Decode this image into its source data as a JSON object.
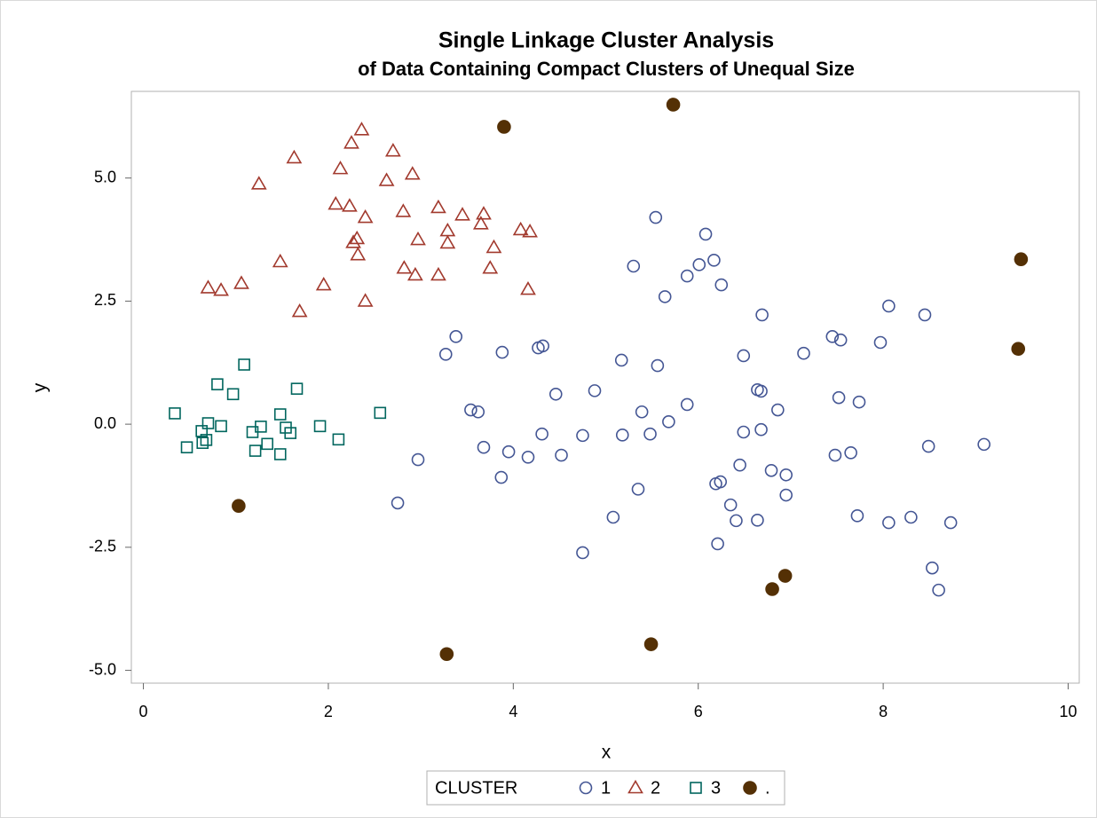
{
  "chart_data": {
    "type": "scatter",
    "title": "Single Linkage Cluster Analysis",
    "subtitle": "of Data Containing Compact Clusters of Unequal Size",
    "x_label": "x",
    "y_label": "y",
    "legend_title": "CLUSTER",
    "legend_position": "bottom",
    "grid": false,
    "xlim": [
      -0.13,
      10.12
    ],
    "ylim": [
      -5.26,
      6.76
    ],
    "xticks": [
      0,
      2,
      4,
      6,
      8,
      10
    ],
    "yticks": [
      {
        "value": -5,
        "label": "-5.0"
      },
      {
        "value": -2.5,
        "label": "-2.5"
      },
      {
        "value": 0,
        "label": "0.0"
      },
      {
        "value": 2.5,
        "label": "2.5"
      },
      {
        "value": 5,
        "label": "5.0"
      }
    ],
    "series": [
      {
        "name": "1",
        "color": "#445694",
        "marker": "circle",
        "filled": false,
        "x": [
          2.75,
          2.97,
          3.27,
          3.38,
          3.54,
          3.62,
          3.68,
          3.88,
          3.87,
          3.95,
          4.16,
          4.27,
          4.32,
          4.31,
          4.46,
          4.52,
          4.75,
          4.75,
          4.88,
          5.08,
          5.17,
          5.18,
          5.3,
          5.35,
          5.39,
          5.48,
          5.54,
          5.56,
          5.64,
          5.68,
          5.88,
          5.88,
          6.01,
          6.08,
          6.17,
          6.25,
          6.19,
          6.24,
          6.21,
          6.35,
          6.41,
          6.45,
          6.49,
          6.49,
          6.64,
          6.64,
          6.69,
          6.68,
          6.68,
          6.79,
          6.86,
          6.95,
          6.95,
          7.14,
          7.45,
          7.48,
          7.52,
          7.54,
          7.65,
          7.74,
          7.72,
          7.97,
          8.06,
          8.06,
          8.3,
          8.45,
          8.49,
          8.53,
          8.6,
          8.73,
          9.09
        ],
        "values": [
          -1.6,
          -0.72,
          1.42,
          1.78,
          0.29,
          0.25,
          -0.47,
          1.46,
          -1.08,
          -0.56,
          -0.67,
          1.55,
          1.59,
          -0.2,
          0.61,
          -0.63,
          -0.23,
          -2.61,
          0.68,
          -1.89,
          1.3,
          -0.22,
          3.21,
          -1.32,
          0.25,
          -0.2,
          4.2,
          1.19,
          2.59,
          0.05,
          3.01,
          0.4,
          3.24,
          3.86,
          3.33,
          2.83,
          -1.21,
          -1.17,
          -2.43,
          -1.64,
          -1.96,
          -0.83,
          -0.16,
          1.39,
          -1.95,
          0.7,
          2.22,
          0.67,
          -0.11,
          -0.94,
          0.29,
          -1.03,
          -1.44,
          1.44,
          1.78,
          -0.63,
          0.54,
          1.71,
          -0.58,
          0.45,
          -1.86,
          1.66,
          2.4,
          -2.0,
          -1.89,
          2.22,
          -0.45,
          -2.92,
          -3.37,
          -2.0,
          -0.41
        ]
      },
      {
        "name": "2",
        "color": "#a23a2e",
        "marker": "triangle",
        "filled": false,
        "x": [
          0.7,
          0.84,
          1.06,
          1.25,
          1.48,
          1.63,
          1.69,
          1.95,
          2.08,
          2.13,
          2.23,
          2.25,
          2.27,
          2.31,
          2.32,
          2.36,
          2.4,
          2.4,
          2.63,
          2.7,
          2.81,
          2.82,
          2.91,
          2.94,
          2.97,
          3.19,
          3.19,
          3.29,
          3.29,
          3.45,
          3.68,
          3.65,
          3.75,
          3.79,
          4.08,
          4.18,
          4.16
        ],
        "values": [
          2.77,
          2.72,
          2.86,
          4.88,
          3.3,
          5.41,
          2.29,
          2.83,
          4.47,
          5.19,
          4.43,
          5.71,
          3.69,
          3.77,
          3.44,
          5.98,
          4.2,
          2.5,
          4.95,
          5.55,
          4.32,
          3.17,
          5.08,
          3.03,
          3.75,
          4.4,
          3.03,
          3.93,
          3.68,
          4.25,
          4.27,
          4.07,
          3.17,
          3.59,
          3.95,
          3.91,
          2.74
        ]
      },
      {
        "name": "3",
        "color": "#01665e",
        "marker": "square",
        "filled": false,
        "x": [
          0.34,
          0.47,
          0.63,
          0.64,
          0.7,
          0.68,
          0.8,
          0.84,
          0.97,
          1.09,
          1.18,
          1.21,
          1.27,
          1.34,
          1.48,
          1.48,
          1.54,
          1.59,
          1.66,
          1.91,
          2.11,
          2.56
        ],
        "values": [
          0.22,
          -0.47,
          -0.14,
          -0.38,
          0.02,
          -0.32,
          0.81,
          -0.04,
          0.61,
          1.21,
          -0.16,
          -0.54,
          -0.05,
          -0.4,
          0.2,
          -0.61,
          -0.07,
          -0.18,
          0.72,
          -0.04,
          -0.31,
          0.23
        ]
      },
      {
        "name": ".",
        "color": "#543005",
        "marker": "circle",
        "filled": true,
        "x": [
          3.9,
          5.73,
          9.49,
          9.46,
          1.03,
          6.94,
          6.8,
          5.49,
          3.28
        ],
        "values": [
          6.04,
          6.49,
          3.35,
          1.53,
          -1.66,
          -3.08,
          -3.35,
          -4.47,
          -4.67
        ]
      }
    ]
  }
}
